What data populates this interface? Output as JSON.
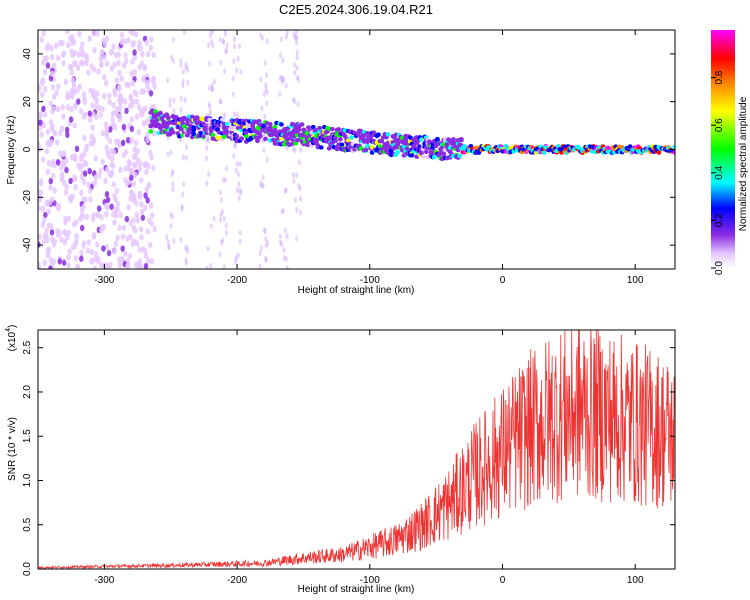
{
  "title": "C2E5.2024.306.19.04.R21",
  "chart_data": [
    {
      "type": "heatmap",
      "xlabel": "Height of straight line (km)",
      "ylabel": "Frequency (Hz)",
      "xlim": [
        -350,
        130
      ],
      "ylim": [
        -50,
        50
      ],
      "x_ticks": [
        -300,
        -200,
        -100,
        0,
        100
      ],
      "x_tick_labels": [
        "-300",
        "-200",
        "-100",
        "0",
        "100"
      ],
      "y_ticks": [
        -40,
        -20,
        0,
        20,
        40
      ],
      "y_tick_labels": [
        "-40",
        "-20",
        "0",
        "20",
        "40"
      ],
      "colorbar": {
        "label": "Normalized spectral amplitude",
        "range": [
          0,
          1
        ],
        "ticks": [
          0.0,
          0.2,
          0.4,
          0.6,
          0.8
        ],
        "tick_labels": [
          "0.0",
          "0.2",
          "0.4",
          "0.6",
          "0.8"
        ],
        "colors": [
          "#ffffff",
          "#e6c8ff",
          "#8a2be2",
          "#0000ff",
          "#00ffff",
          "#00ff00",
          "#ffff00",
          "#ff8000",
          "#ff0000",
          "#ff00ff"
        ]
      },
      "ridge": {
        "x": [
          -265,
          -250,
          -200,
          -150,
          -100,
          -80,
          -60,
          -40,
          -30,
          0,
          50,
          100,
          130
        ],
        "freq": [
          12,
          10,
          8,
          6,
          3,
          2,
          1,
          0,
          0,
          0,
          0,
          0,
          0
        ]
      },
      "noise_region": {
        "x_from": -350,
        "x_to": -262
      },
      "grid": false
    },
    {
      "type": "line",
      "xlabel": "Height of straight line (km)",
      "ylabel": "SNR (10 * v/v)",
      "y_exponent_label": "(x10",
      "y_exponent": "4",
      "y_exponent_close": ")",
      "xlim": [
        -350,
        130
      ],
      "ylim": [
        0,
        2.7
      ],
      "x_ticks": [
        -300,
        -200,
        -100,
        0,
        100
      ],
      "x_tick_labels": [
        "-300",
        "-200",
        "-100",
        "0",
        "100"
      ],
      "y_ticks": [
        0.0,
        0.5,
        1.0,
        1.5,
        2.0,
        2.5
      ],
      "y_tick_labels": [
        "0.0",
        "0.5",
        "1.0",
        "1.5",
        "2.0",
        "2.5"
      ],
      "series_color": "#ee3333",
      "envelope": {
        "x": [
          -350,
          -250,
          -180,
          -150,
          -120,
          -100,
          -80,
          -60,
          -40,
          -20,
          0,
          20,
          40,
          60,
          80,
          100,
          120,
          130
        ],
        "y": [
          0.02,
          0.05,
          0.08,
          0.15,
          0.2,
          0.3,
          0.4,
          0.6,
          0.9,
          1.3,
          1.6,
          1.9,
          2.1,
          2.2,
          2.1,
          2.0,
          1.9,
          1.8
        ]
      },
      "grid": false
    }
  ]
}
